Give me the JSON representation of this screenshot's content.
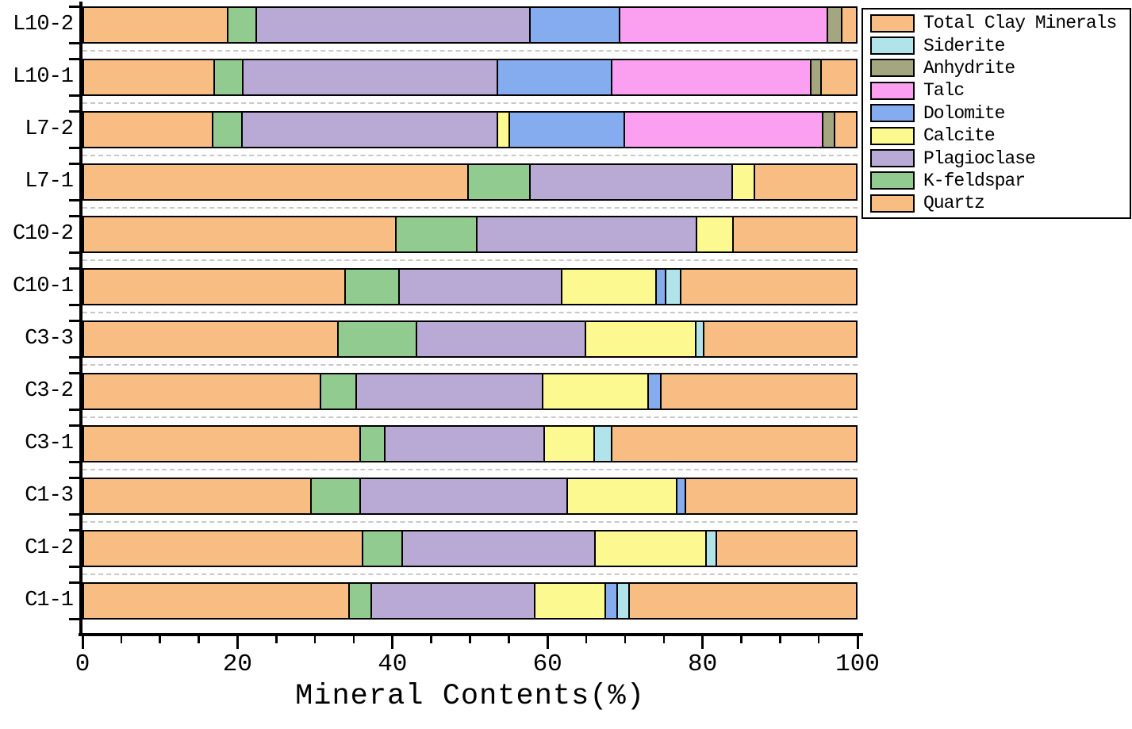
{
  "chart_data": {
    "type": "bar",
    "variant": "horizontal_stacked",
    "title": "",
    "xlabel": "Mineral Contents(%)",
    "ylabel": "",
    "xlim": [
      0,
      100
    ],
    "x_major_ticks": [
      0,
      20,
      40,
      60,
      80,
      100
    ],
    "x_tick_labels": [
      "0",
      "20",
      "40",
      "60",
      "80",
      "100"
    ],
    "x_minor_tick_step": 5,
    "grid": "dashed gray separator line between bars",
    "categories": [
      "L10-2",
      "L10-1",
      "L7-2",
      "L7-1",
      "C10-2",
      "C10-1",
      "C3-3",
      "C3-2",
      "C3-1",
      "C1-3",
      "C1-2",
      "C1-1"
    ],
    "stack_note": "series listed in left-to-right stacking order within each bar; values aligned with categories (top to bottom)",
    "series": [
      {
        "name": "Quartz",
        "color": "#F8BD82",
        "values": [
          18.5,
          16.8,
          16.5,
          49.6,
          40.3,
          33.7,
          32.8,
          30.5,
          35.7,
          29.3,
          36.0,
          34.2
        ]
      },
      {
        "name": "K-feldspar",
        "color": "#92CB8F",
        "values": [
          3.7,
          3.7,
          3.8,
          8.1,
          10.5,
          7.0,
          10.2,
          4.6,
          3.2,
          6.4,
          5.1,
          2.9
        ]
      },
      {
        "name": "Plagioclase",
        "color": "#B8A9D5",
        "values": [
          35.5,
          32.9,
          33.1,
          26.2,
          28.4,
          21.1,
          21.9,
          24.2,
          20.6,
          26.8,
          25.0,
          21.2
        ]
      },
      {
        "name": "Calcite",
        "color": "#FBF98F",
        "values": [
          0,
          0,
          1.6,
          2.8,
          4.8,
          12.2,
          14.2,
          13.7,
          6.5,
          14.2,
          14.4,
          9.1
        ]
      },
      {
        "name": "Dolomite",
        "color": "#85ACEE",
        "values": [
          11.6,
          14.8,
          14.9,
          0,
          0,
          1.2,
          0,
          1.6,
          0,
          1.1,
          0,
          1.6
        ]
      },
      {
        "name": "Talc",
        "color": "#FB9FF1",
        "values": [
          26.9,
          25.8,
          25.7,
          0,
          0,
          0,
          0,
          0,
          0,
          0,
          0,
          0
        ]
      },
      {
        "name": "Anhydrite",
        "color": "#A3A67E",
        "values": [
          1.9,
          1.4,
          1.5,
          0,
          0,
          0,
          0,
          0,
          0,
          0,
          0,
          0
        ]
      },
      {
        "name": "Siderite",
        "color": "#B0E3EA",
        "values": [
          0,
          0,
          0,
          0,
          0,
          2.0,
          1.1,
          0,
          2.2,
          0,
          1.3,
          1.5
        ]
      },
      {
        "name": "Total Clay Minerals",
        "color": "#F8BD82",
        "values": [
          1.9,
          4.6,
          2.9,
          13.3,
          16.0,
          22.8,
          19.8,
          25.4,
          31.8,
          22.2,
          18.2,
          29.5
        ]
      }
    ],
    "legend": {
      "position": "outside_top_right",
      "entries_top_to_bottom": [
        "Total Clay Minerals",
        "Siderite",
        "Anhydrite",
        "Talc",
        "Dolomite",
        "Calcite",
        "Plagioclase",
        "K-feldspar",
        "Quartz"
      ]
    }
  }
}
